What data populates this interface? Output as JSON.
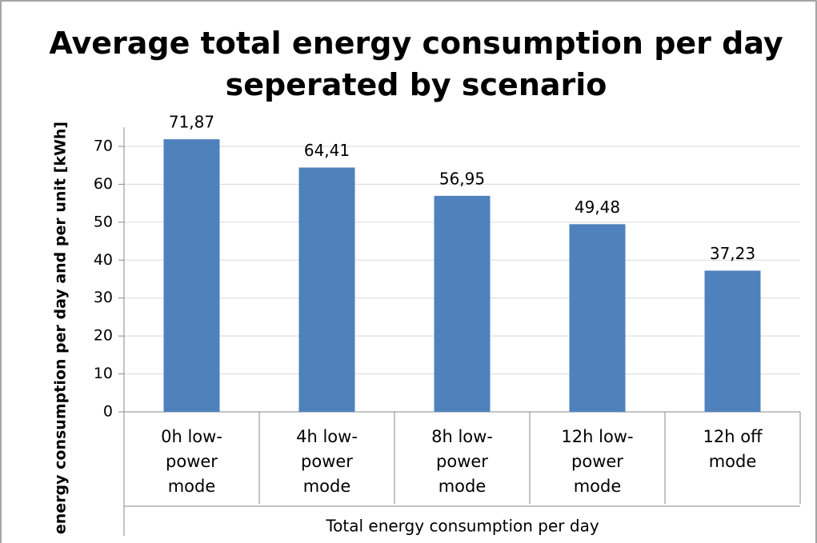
{
  "chart_data": {
    "type": "bar",
    "title": "Average total energy consumption per day seperated by scenario",
    "y_label": "energy consumption per day and per unit [kWh]",
    "x_label": "Total energy consumption per day",
    "categories": [
      "0h low-power mode",
      "4h low-power mode",
      "8h low-power mode",
      "12h low-power mode",
      "12h off mode"
    ],
    "values": [
      71.87,
      64.41,
      56.95,
      49.48,
      37.23
    ],
    "value_labels": [
      "71,87",
      "64,41",
      "56,95",
      "49,48",
      "37,23"
    ],
    "color": "#4f81bd",
    "ylim": [
      0,
      75
    ],
    "yticks": [
      0,
      10,
      20,
      30,
      40,
      50,
      60,
      70
    ],
    "grid": true
  }
}
